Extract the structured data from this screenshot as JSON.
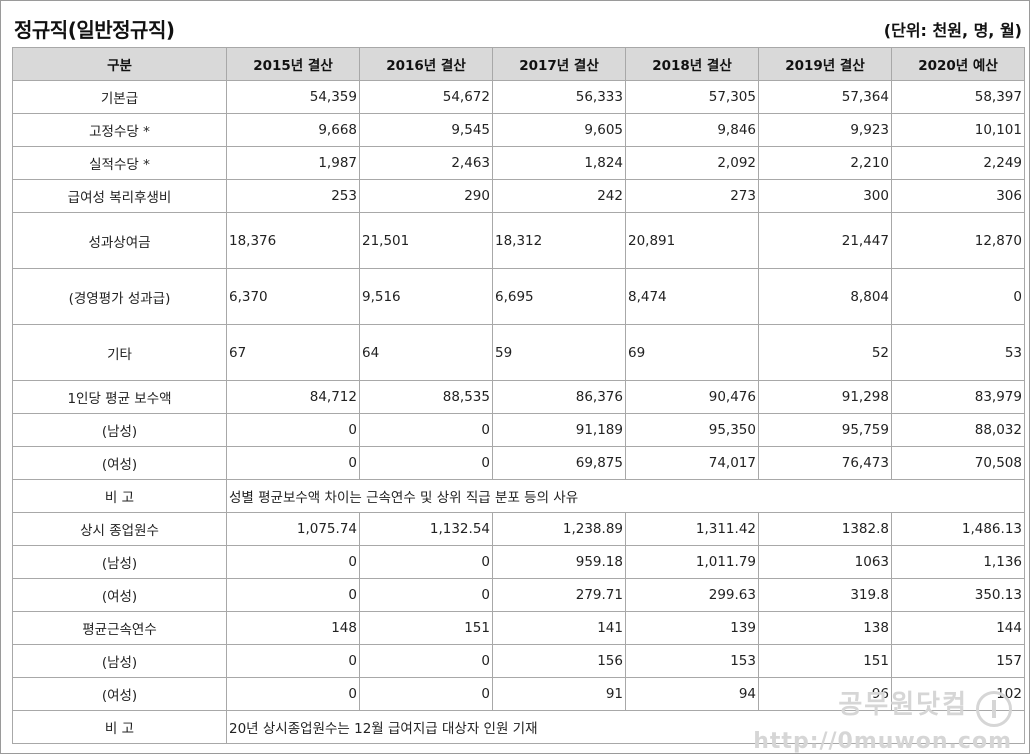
{
  "title": "정규직(일반정규직)",
  "unit": "(단위: 천원, 명, 월)",
  "headers": [
    "구분",
    "2015년 결산",
    "2016년 결산",
    "2017년 결산",
    "2018년 결산",
    "2019년 결산",
    "2020년 예산"
  ],
  "rows": [
    {
      "label": "기본급",
      "values": [
        "54,359",
        "54,672",
        "56,333",
        "57,305",
        "57,364",
        "58,397"
      ]
    },
    {
      "label": "고정수당 *",
      "values": [
        "9,668",
        "9,545",
        "9,605",
        "9,846",
        "9,923",
        "10,101"
      ]
    },
    {
      "label": "실적수당 *",
      "values": [
        "1,987",
        "2,463",
        "1,824",
        "2,092",
        "2,210",
        "2,249"
      ]
    },
    {
      "label": "급여성 복리후생비",
      "values": [
        "253",
        "290",
        "242",
        "273",
        "300",
        "306"
      ]
    },
    {
      "label": "성과상여금",
      "values": [
        "18,376",
        "21,501",
        "18,312",
        "20,891",
        "21,447",
        "12,870"
      ]
    },
    {
      "label": "(경영평가 성과급)",
      "values": [
        "6,370",
        "9,516",
        "6,695",
        "8,474",
        "8,804",
        "0"
      ]
    },
    {
      "label": "기타",
      "values": [
        "67",
        "64",
        "59",
        "69",
        "52",
        "53"
      ]
    },
    {
      "label": "1인당 평균 보수액",
      "values": [
        "84,712",
        "88,535",
        "86,376",
        "90,476",
        "91,298",
        "83,979"
      ]
    },
    {
      "label": "(남성)",
      "values": [
        "0",
        "0",
        "91,189",
        "95,350",
        "95,759",
        "88,032"
      ]
    },
    {
      "label": "(여성)",
      "values": [
        "0",
        "0",
        "69,875",
        "74,017",
        "76,473",
        "70,508"
      ]
    },
    {
      "label": "비 고",
      "note": "성별 평균보수액 차이는 근속연수 및 상위 직급 분포 등의 사유"
    },
    {
      "label": "상시 종업원수",
      "values": [
        "1,075.74",
        "1,132.54",
        "1,238.89",
        "1,311.42",
        "1382.8",
        "1,486.13"
      ]
    },
    {
      "label": "(남성)",
      "values": [
        "0",
        "0",
        "959.18",
        "1,011.79",
        "1063",
        "1,136"
      ]
    },
    {
      "label": "(여성)",
      "values": [
        "0",
        "0",
        "279.71",
        "299.63",
        "319.8",
        "350.13"
      ]
    },
    {
      "label": "평균근속연수",
      "values": [
        "148",
        "151",
        "141",
        "139",
        "138",
        "144"
      ]
    },
    {
      "label": "(남성)",
      "values": [
        "0",
        "0",
        "156",
        "153",
        "151",
        "157"
      ]
    },
    {
      "label": "(여성)",
      "values": [
        "0",
        "0",
        "91",
        "94",
        "96",
        "102"
      ]
    },
    {
      "label": "비 고",
      "note": "20년 상시종업원수는 12월 급여지급 대상자 인원 기재"
    }
  ],
  "watermark": {
    "logo_text": "공무원닷컴",
    "url": "http://0muwon.com"
  }
}
